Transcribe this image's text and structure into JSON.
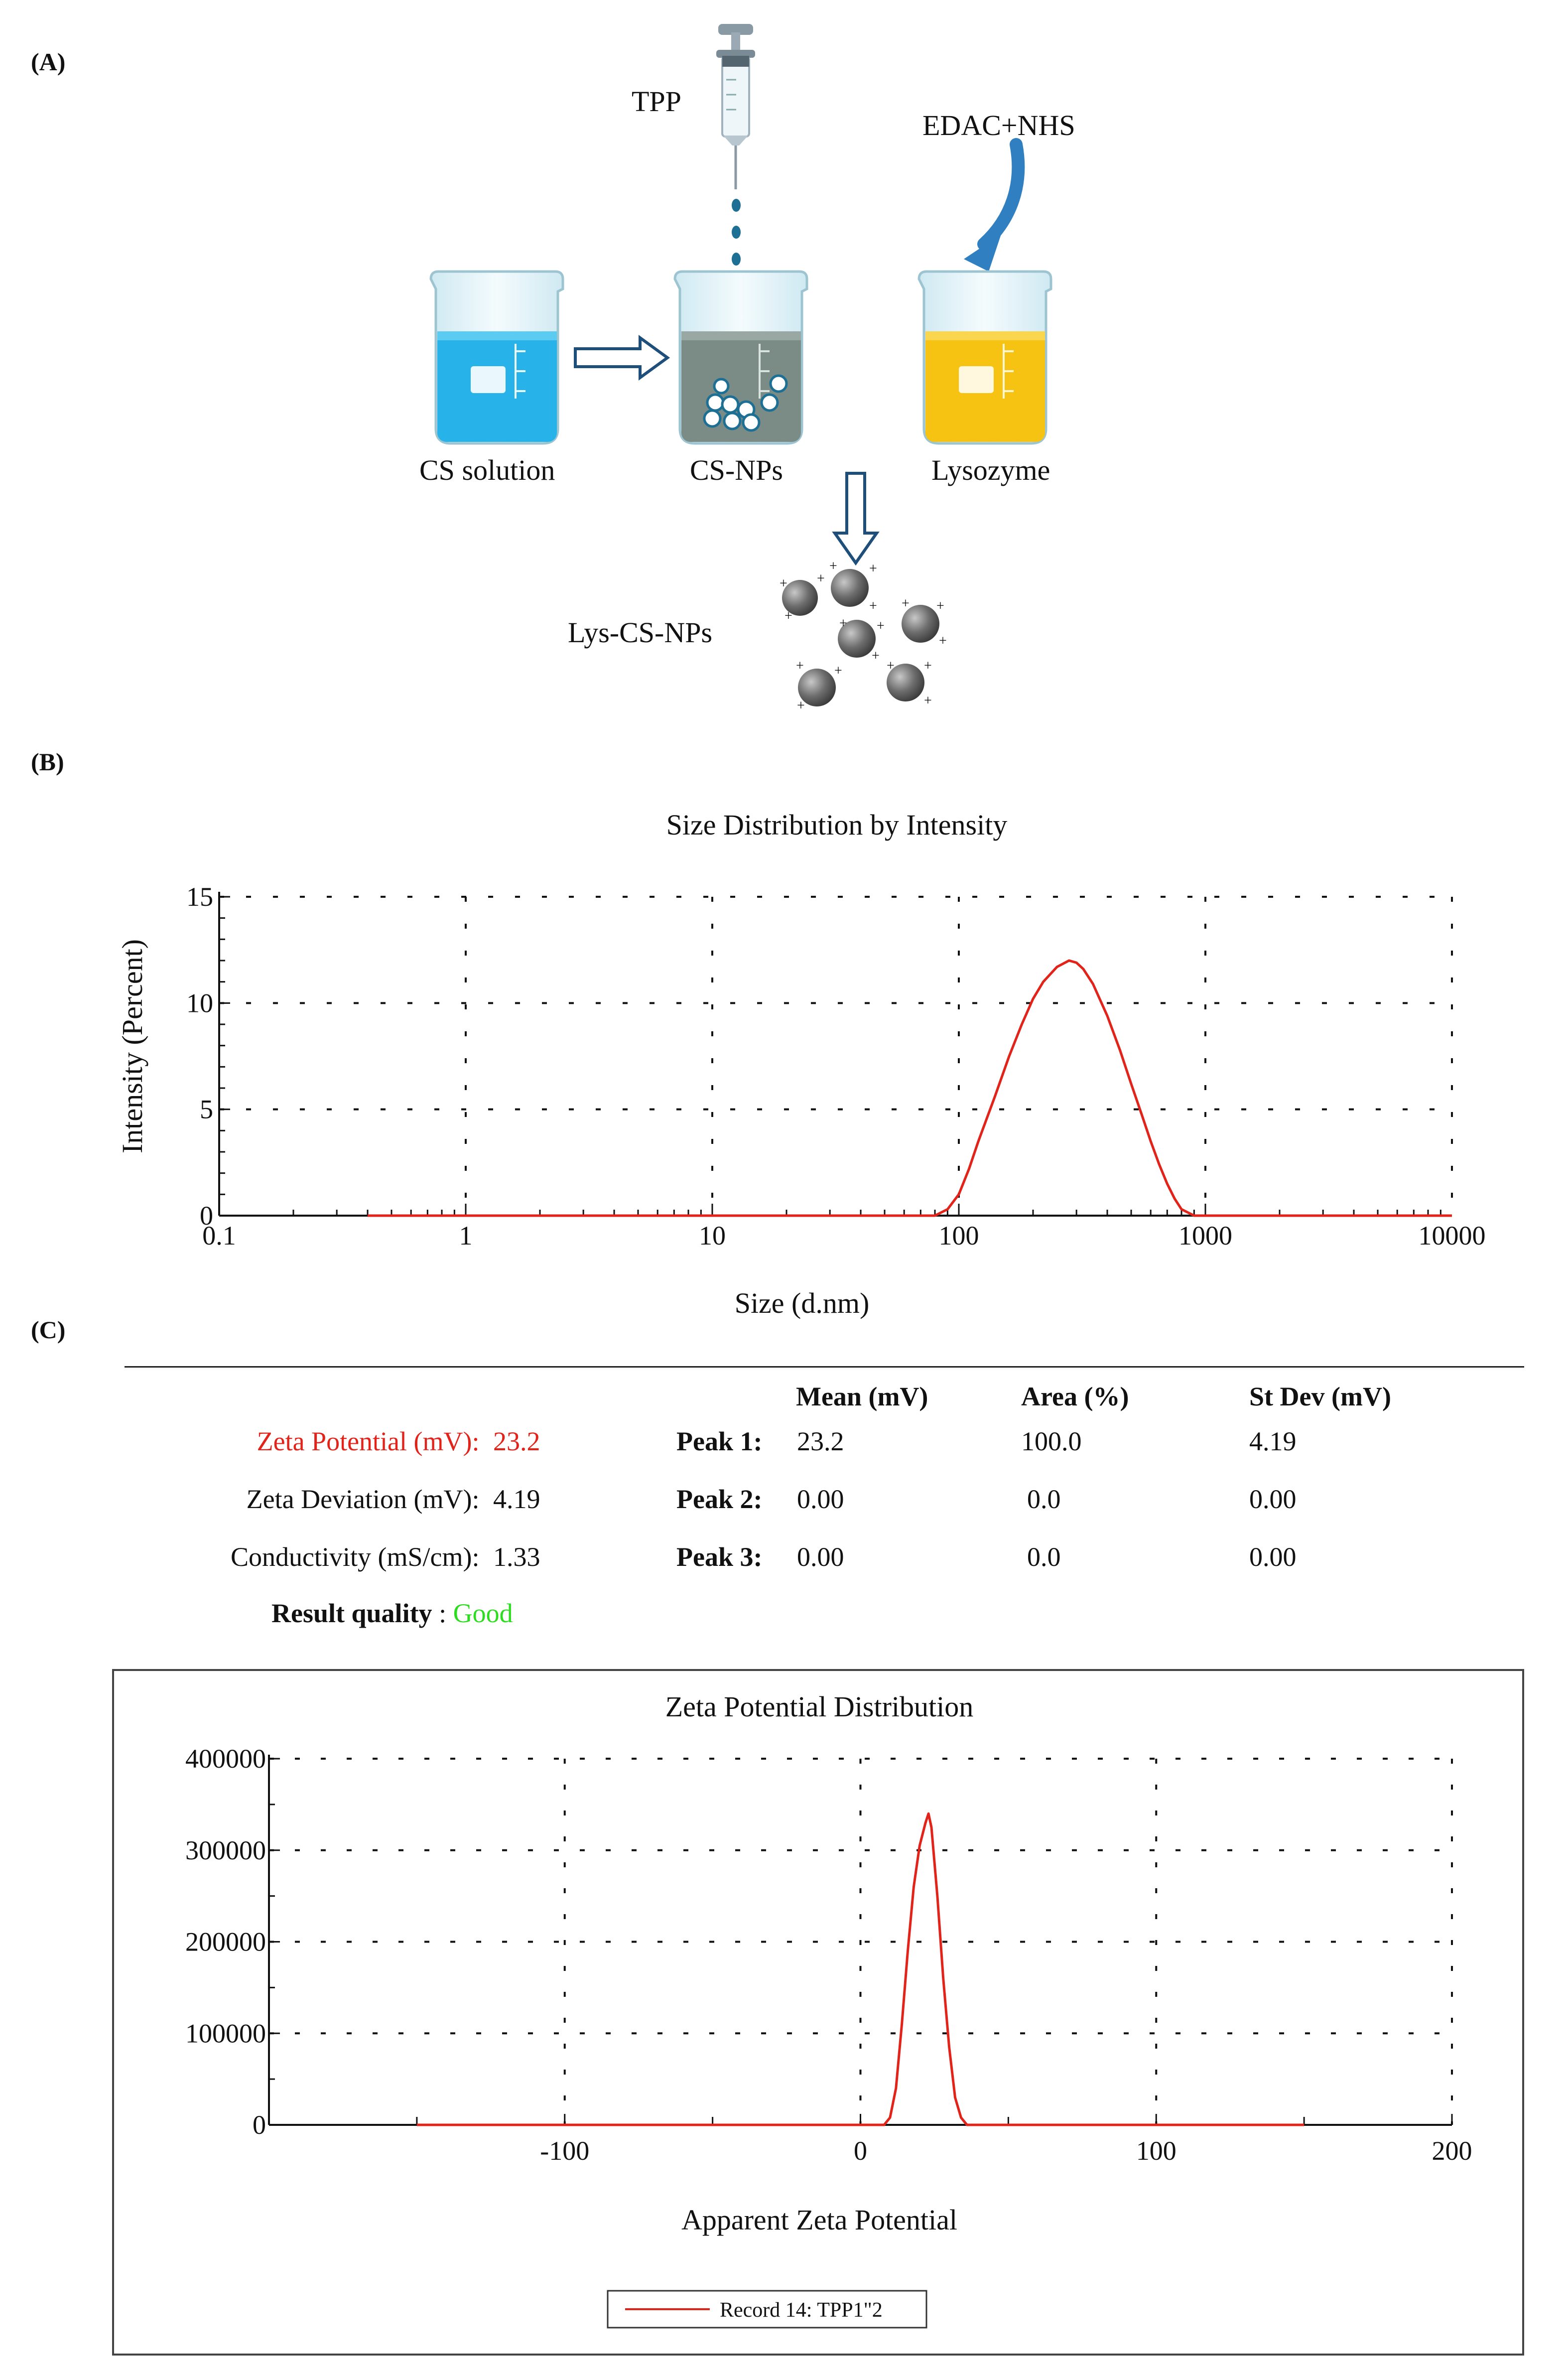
{
  "panels": {
    "a": "(A)",
    "b": "(B)",
    "c": "(C)"
  },
  "scheme": {
    "reagent_top": "TPP",
    "reagent_right": "EDAC+NHS",
    "beaker1": "CS solution",
    "beaker2": "CS-NPs",
    "beaker3": "Lysozyme",
    "product": "Lys-CS-NPs",
    "icons": [
      "syringe-icon",
      "beaker-icon",
      "nanoparticle-icon",
      "arrow-icon"
    ],
    "colors": {
      "cs_solution": "#27b3ea",
      "cs_nps": "#7b8c86",
      "lysozyme": "#f6c312",
      "arrow": "#2f7fc1"
    }
  },
  "size_chart": {
    "chart_data": {
      "type": "line",
      "title": "Size Distribution by Intensity",
      "xlabel": "Size (d.nm)",
      "ylabel": "Intensity (Percent)",
      "xscale": "log",
      "xlim": [
        0.1,
        10000
      ],
      "ylim": [
        0,
        15
      ],
      "x_ticks": [
        "0.1",
        "1",
        "10",
        "100",
        "1000",
        "10000"
      ],
      "y_ticks": [
        "0",
        "5",
        "10",
        "15"
      ],
      "grid": true,
      "series": [
        {
          "name": "Intensity",
          "color": "#e2231a",
          "x": [
            0.4,
            1,
            10,
            70,
            80,
            90,
            100,
            110,
            120,
            140,
            160,
            180,
            200,
            220,
            250,
            280,
            300,
            320,
            350,
            400,
            450,
            500,
            550,
            600,
            650,
            700,
            750,
            800,
            900,
            1000,
            10000
          ],
          "y": [
            0,
            0,
            0,
            0,
            0,
            0.3,
            1.0,
            2.2,
            3.5,
            5.6,
            7.5,
            9.0,
            10.2,
            11.0,
            11.7,
            12.0,
            11.9,
            11.6,
            10.9,
            9.4,
            7.8,
            6.2,
            4.8,
            3.5,
            2.4,
            1.5,
            0.8,
            0.3,
            0,
            0,
            0
          ]
        }
      ]
    }
  },
  "zeta_table": {
    "rows": [
      {
        "label": "Zeta Potential (mV):",
        "value": "23.2"
      },
      {
        "label": "Zeta Deviation (mV):",
        "value": "4.19"
      },
      {
        "label": "Conductivity (mS/cm):",
        "value": "1.33"
      }
    ],
    "quality_label": "Result quality",
    "quality_sep": ":",
    "quality_value": "Good",
    "headers": [
      "Mean (mV)",
      "Area (%)",
      "St Dev (mV)"
    ],
    "peaks": [
      {
        "name": "Peak 1:",
        "mean": "23.2",
        "area": "100.0",
        "stdev": "4.19"
      },
      {
        "name": "Peak 2:",
        "mean": "0.00",
        "area": "0.0",
        "stdev": "0.00"
      },
      {
        "name": "Peak 3:",
        "mean": "0.00",
        "area": "0.0",
        "stdev": "0.00"
      }
    ]
  },
  "zeta_chart": {
    "legend_label": "Record 14: TPP1\"2",
    "chart_data": {
      "type": "line",
      "title": "Zeta Potential Distribution",
      "xlabel": "Apparent Zeta Potential",
      "ylabel": "",
      "xlim": [
        -200,
        200
      ],
      "ylim": [
        0,
        400000
      ],
      "x_ticks": [
        "-100",
        "0",
        "100",
        "200"
      ],
      "y_ticks": [
        "0",
        "100000",
        "200000",
        "300000",
        "400000"
      ],
      "grid": true,
      "series": [
        {
          "name": "Record 14: TPP1\"2",
          "color": "#e2231a",
          "x": [
            -150,
            0,
            8,
            10,
            12,
            14,
            16,
            18,
            20,
            22,
            23,
            24,
            26,
            28,
            30,
            32,
            34,
            36,
            38,
            150
          ],
          "y": [
            0,
            0,
            0,
            8000,
            40000,
            110000,
            190000,
            260000,
            305000,
            330000,
            340000,
            325000,
            250000,
            160000,
            85000,
            30000,
            8000,
            0,
            0,
            0
          ]
        }
      ]
    }
  }
}
